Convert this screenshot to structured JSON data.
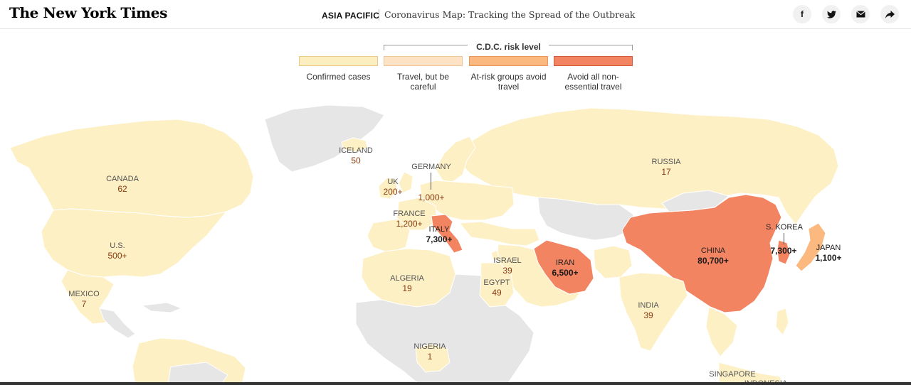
{
  "header": {
    "logo": "The New York Times",
    "section": "ASIA PACIFIC",
    "headline": "Coronavirus Map: Tracking the Spread of the Outbreak",
    "share_icons": [
      "facebook-icon",
      "twitter-icon",
      "email-icon",
      "share-icon"
    ]
  },
  "legend": {
    "cdc_title": "C.D.C. risk level",
    "items": [
      {
        "label": "Confirmed cases",
        "fill": "#fdeec0",
        "stroke": "#e9c98a"
      },
      {
        "label": "Travel, but be careful",
        "fill": "#fde2c4",
        "stroke": "#eec49a"
      },
      {
        "label": "At-risk groups avoid travel",
        "fill": "#fbb980",
        "stroke": "#e8985a"
      },
      {
        "label": "Avoid all non-essential travel",
        "fill": "#f28462",
        "stroke": "#d2593a"
      }
    ]
  },
  "map": {
    "colors": {
      "no_cases": "#e6e6e6",
      "confirmed": "#fdf0c5",
      "moderate": "#fbb980",
      "severe": "#f28462"
    },
    "countries": [
      {
        "name": "CANADA",
        "count": "62"
      },
      {
        "name": "U.S.",
        "count": "500+"
      },
      {
        "name": "MEXICO",
        "count": "7"
      },
      {
        "name": "ICELAND",
        "count": "50"
      },
      {
        "name": "UK",
        "count": "200+"
      },
      {
        "name": "GERMANY",
        "count": "1,000+"
      },
      {
        "name": "FRANCE",
        "count": "1,200+"
      },
      {
        "name": "ITALY",
        "count": "7,300+"
      },
      {
        "name": "ALGERIA",
        "count": "19"
      },
      {
        "name": "NIGERIA",
        "count": "1"
      },
      {
        "name": "ISRAEL",
        "count": "39"
      },
      {
        "name": "EGYPT",
        "count": "49"
      },
      {
        "name": "IRAN",
        "count": "6,500+"
      },
      {
        "name": "RUSSIA",
        "count": "17"
      },
      {
        "name": "INDIA",
        "count": "39"
      },
      {
        "name": "CHINA",
        "count": "80,700+"
      },
      {
        "name": "S. KOREA",
        "count": "7,300+"
      },
      {
        "name": "JAPAN",
        "count": "1,100+"
      },
      {
        "name": "SINGAPORE",
        "count": ""
      },
      {
        "name": "INDONESIA",
        "count": ""
      }
    ]
  }
}
